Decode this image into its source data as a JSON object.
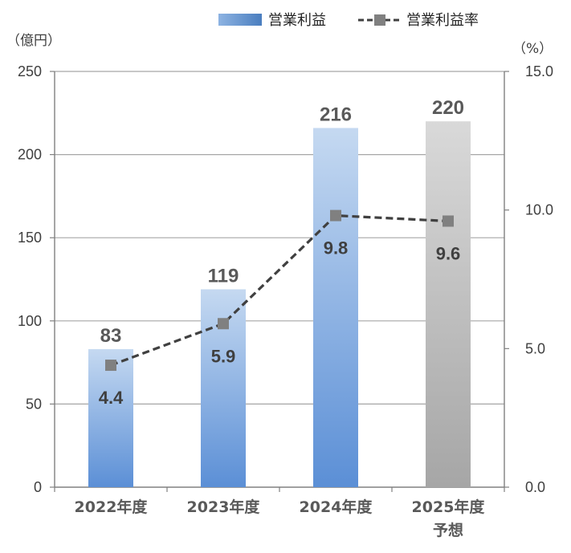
{
  "chart_data": {
    "type": "bar",
    "categories": [
      "2022年度",
      "2023年度",
      "2024年度",
      "2025年度\n予想"
    ],
    "series": [
      {
        "name": "営業利益",
        "type": "bar",
        "axis": "left",
        "values": [
          83,
          119,
          216,
          220
        ],
        "labels": [
          "83",
          "119",
          "216",
          "220"
        ]
      },
      {
        "name": "営業利益率",
        "type": "line",
        "axis": "right",
        "values": [
          4.4,
          5.9,
          9.8,
          9.6
        ],
        "labels": [
          "4.4",
          "5.9",
          "9.8",
          "9.6"
        ]
      }
    ],
    "y_left": {
      "unit_label": "（億円）",
      "min": 0,
      "max": 250,
      "ticks": [
        "0",
        "50",
        "100",
        "150",
        "200",
        "250"
      ]
    },
    "y_right": {
      "unit_label": "（%）",
      "min": 0,
      "max": 15,
      "ticks": [
        "0.0",
        "5.0",
        "10.0",
        "15.0"
      ]
    },
    "grid": true,
    "legend_position": "top",
    "forecast_category_index": 3,
    "colors": {
      "bar_gradient_top": "#c5d9f1",
      "bar_gradient_bottom": "#5b8fd6",
      "forecast_gradient_top": "#d9d9d9",
      "forecast_gradient_bottom": "#a6a6a6",
      "line": "#404040",
      "marker": "#808080",
      "grid": "#a6a6a6"
    }
  }
}
